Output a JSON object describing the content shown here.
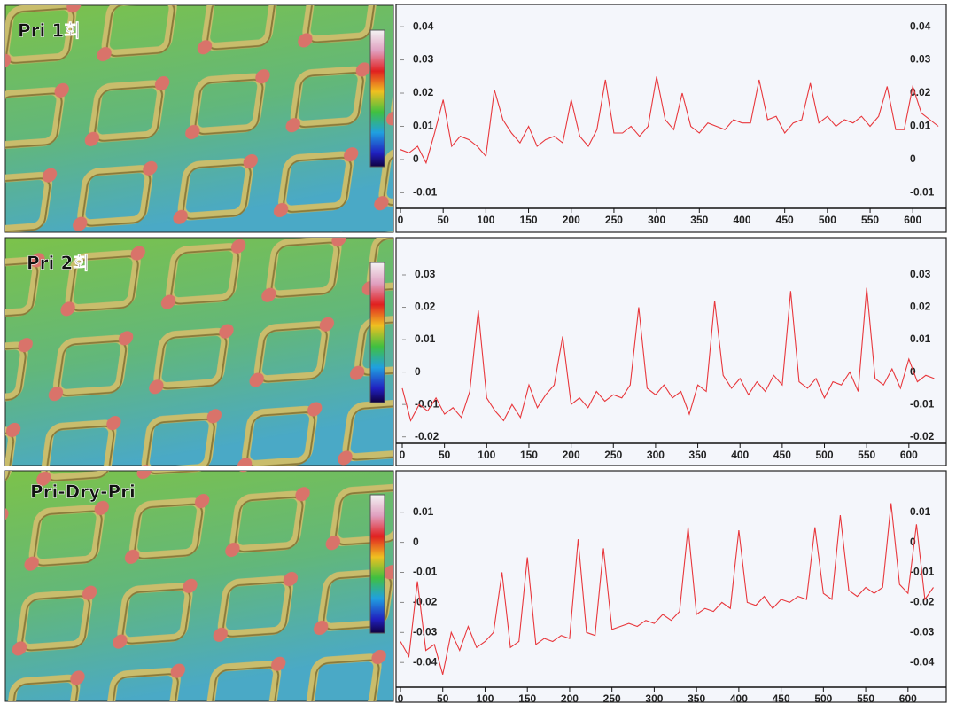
{
  "panels": [
    {
      "label": "Pri 1회"
    },
    {
      "label": "Pri 2회"
    },
    {
      "label": "Pri-Dry-Pri"
    }
  ],
  "chart_data": [
    {
      "type": "line",
      "xlim": [
        0,
        634
      ],
      "ylim": [
        -0.0147,
        0.0459
      ],
      "xticks": [
        0,
        50,
        100,
        150,
        200,
        250,
        300,
        350,
        400,
        450,
        500,
        550,
        600
      ],
      "yticks": [
        -0.01,
        0,
        0.01,
        0.02,
        0.03,
        0.04
      ],
      "x": [
        0,
        10,
        20,
        30,
        40,
        50,
        60,
        70,
        80,
        90,
        100,
        110,
        120,
        130,
        140,
        150,
        160,
        170,
        180,
        190,
        200,
        210,
        220,
        230,
        240,
        250,
        260,
        270,
        280,
        290,
        300,
        310,
        320,
        330,
        340,
        350,
        360,
        370,
        380,
        390,
        400,
        410,
        420,
        430,
        440,
        450,
        460,
        470,
        480,
        490,
        500,
        510,
        520,
        530,
        540,
        550,
        560,
        570,
        580,
        590,
        600,
        610,
        620,
        630
      ],
      "series": [
        {
          "color": "#e8373c",
          "values": [
            0.003,
            0.002,
            0.004,
            -0.001,
            0.008,
            0.018,
            0.004,
            0.007,
            0.006,
            0.004,
            0.001,
            0.021,
            0.012,
            0.008,
            0.005,
            0.01,
            0.004,
            0.006,
            0.007,
            0.005,
            0.018,
            0.007,
            0.004,
            0.009,
            0.024,
            0.008,
            0.008,
            0.01,
            0.007,
            0.01,
            0.025,
            0.012,
            0.009,
            0.02,
            0.01,
            0.008,
            0.011,
            0.01,
            0.009,
            0.012,
            0.011,
            0.011,
            0.024,
            0.012,
            0.013,
            0.008,
            0.011,
            0.012,
            0.023,
            0.011,
            0.013,
            0.01,
            0.012,
            0.011,
            0.013,
            0.01,
            0.013,
            0.022,
            0.009,
            0.009,
            0.022,
            0.014,
            0.012,
            0.01
          ]
        }
      ]
    },
    {
      "type": "line",
      "xlim": [
        0,
        639
      ],
      "ylim": [
        -0.022,
        0.0404
      ],
      "xticks": [
        0,
        50,
        100,
        150,
        200,
        250,
        300,
        350,
        400,
        450,
        500,
        550,
        600
      ],
      "yticks": [
        -0.02,
        -0.01,
        0,
        0.01,
        0.02,
        0.03
      ],
      "x": [
        0,
        10,
        20,
        30,
        40,
        50,
        60,
        70,
        80,
        90,
        100,
        110,
        120,
        130,
        140,
        150,
        160,
        170,
        180,
        190,
        200,
        210,
        220,
        230,
        240,
        250,
        260,
        270,
        280,
        290,
        300,
        310,
        320,
        330,
        340,
        350,
        360,
        370,
        380,
        390,
        400,
        410,
        420,
        430,
        440,
        450,
        460,
        470,
        480,
        490,
        500,
        510,
        520,
        530,
        540,
        550,
        560,
        570,
        580,
        590,
        600,
        610,
        620,
        630
      ],
      "series": [
        {
          "color": "#e8373c",
          "values": [
            -0.005,
            -0.015,
            -0.01,
            -0.012,
            -0.008,
            -0.013,
            -0.011,
            -0.014,
            -0.006,
            0.019,
            -0.008,
            -0.012,
            -0.015,
            -0.01,
            -0.014,
            -0.004,
            -0.011,
            -0.007,
            -0.004,
            0.011,
            -0.01,
            -0.008,
            -0.011,
            -0.006,
            -0.009,
            -0.007,
            -0.008,
            -0.004,
            0.02,
            -0.005,
            -0.007,
            -0.004,
            -0.008,
            -0.006,
            -0.013,
            -0.004,
            -0.006,
            0.022,
            -0.001,
            -0.005,
            -0.002,
            -0.007,
            -0.003,
            -0.006,
            -0.001,
            -0.004,
            0.025,
            -0.003,
            -0.005,
            -0.002,
            -0.008,
            -0.003,
            -0.004,
            0,
            -0.006,
            0.026,
            -0.002,
            -0.004,
            0.001,
            -0.005,
            0.004,
            -0.003,
            -0.001,
            -0.002
          ]
        }
      ]
    },
    {
      "type": "line",
      "xlim": [
        0,
        640
      ],
      "ylim": [
        -0.0482,
        0.0226
      ],
      "xticks": [
        0,
        50,
        100,
        150,
        200,
        250,
        300,
        350,
        400,
        450,
        500,
        550,
        600
      ],
      "yticks": [
        -0.04,
        -0.03,
        -0.02,
        -0.01,
        0,
        0.01
      ],
      "x": [
        0,
        10,
        20,
        30,
        40,
        50,
        60,
        70,
        80,
        90,
        100,
        110,
        120,
        130,
        140,
        150,
        160,
        170,
        180,
        190,
        200,
        210,
        220,
        230,
        240,
        250,
        260,
        270,
        280,
        290,
        300,
        310,
        320,
        330,
        340,
        350,
        360,
        370,
        380,
        390,
        400,
        410,
        420,
        430,
        440,
        450,
        460,
        470,
        480,
        490,
        500,
        510,
        520,
        530,
        540,
        550,
        560,
        570,
        580,
        590,
        600,
        610,
        620,
        630
      ],
      "series": [
        {
          "color": "#e8373c",
          "values": [
            -0.033,
            -0.038,
            -0.013,
            -0.036,
            -0.034,
            -0.044,
            -0.03,
            -0.036,
            -0.028,
            -0.035,
            -0.033,
            -0.03,
            -0.01,
            -0.035,
            -0.033,
            -0.005,
            -0.034,
            -0.032,
            -0.033,
            -0.031,
            -0.032,
            0.001,
            -0.03,
            -0.031,
            -0.002,
            -0.029,
            -0.028,
            -0.027,
            -0.028,
            -0.026,
            -0.027,
            -0.024,
            -0.026,
            -0.023,
            0.005,
            -0.024,
            -0.022,
            -0.023,
            -0.02,
            -0.022,
            0.004,
            -0.02,
            -0.021,
            -0.018,
            -0.022,
            -0.019,
            -0.02,
            -0.018,
            -0.019,
            0.005,
            -0.017,
            -0.019,
            0.009,
            -0.016,
            -0.018,
            -0.015,
            -0.017,
            -0.015,
            0.013,
            -0.014,
            -0.017,
            0.006,
            -0.019,
            -0.015
          ]
        }
      ]
    }
  ]
}
